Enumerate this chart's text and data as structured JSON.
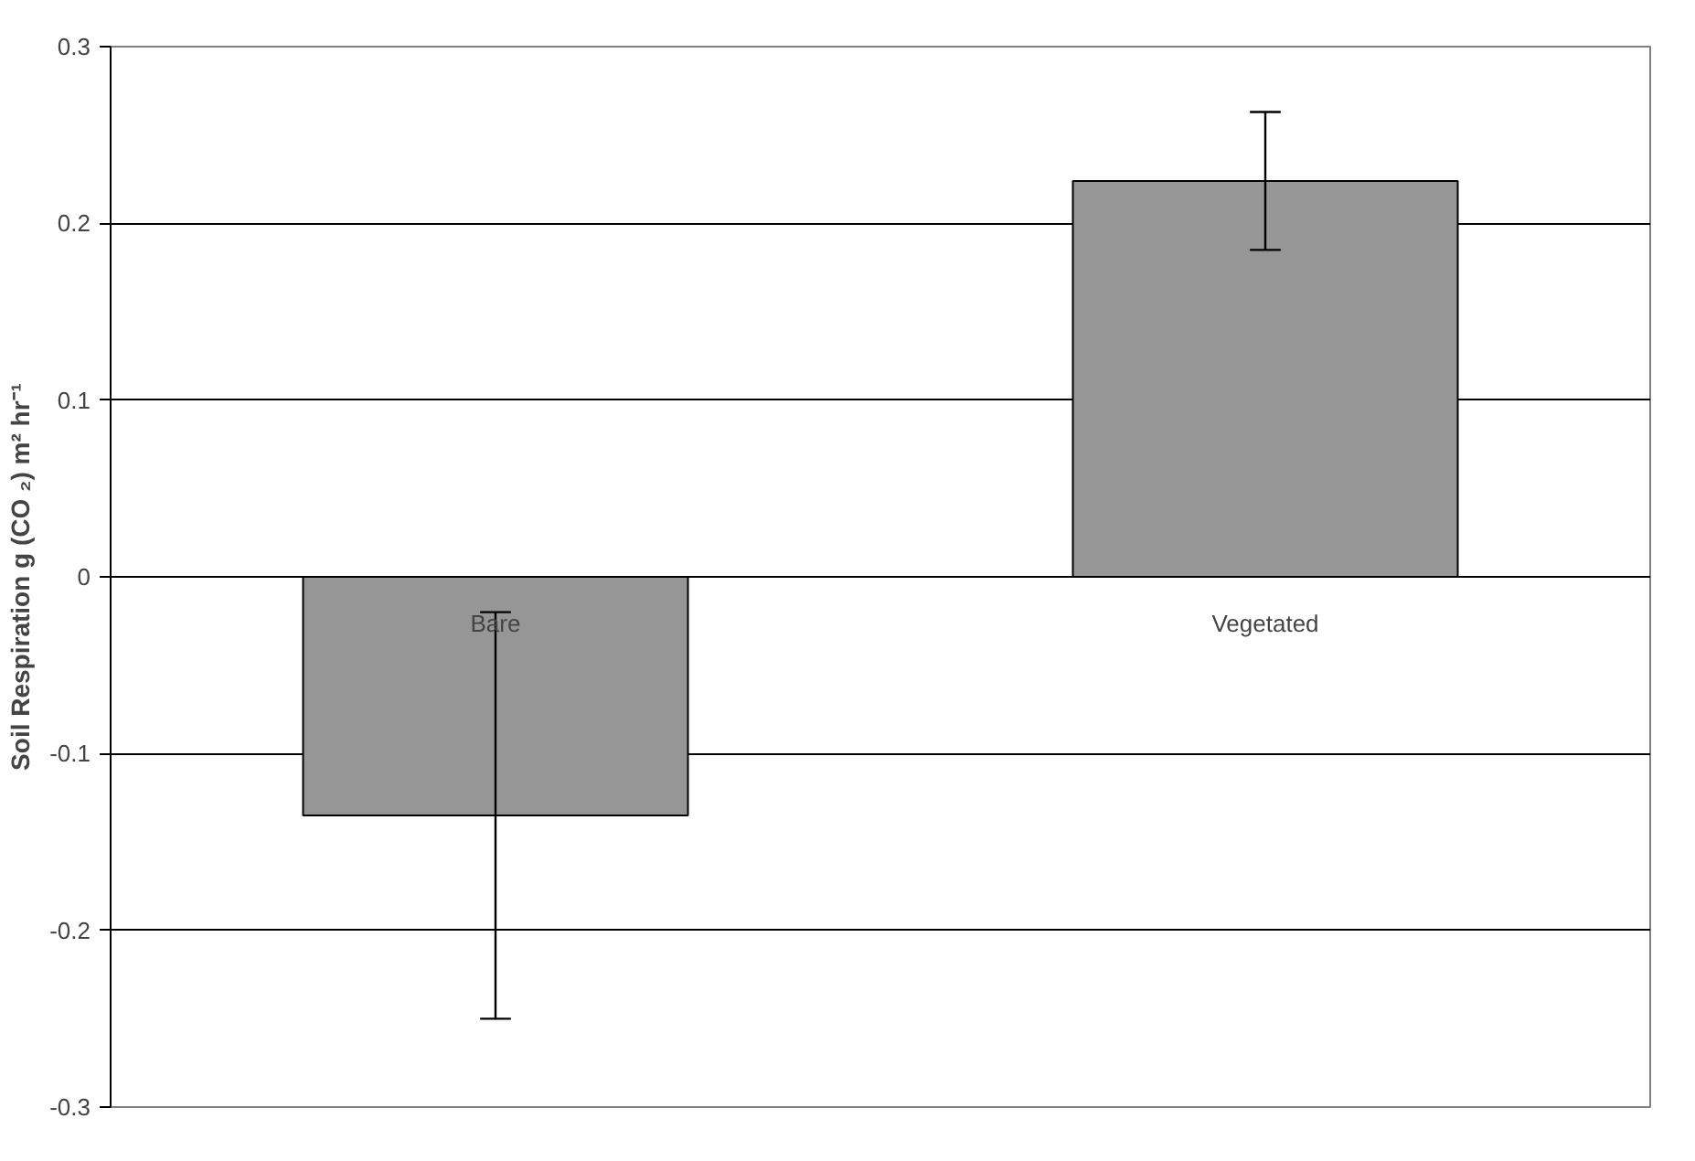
{
  "chart_data": {
    "type": "bar",
    "ylabel": "Soil Respiration g (CO ₂) m² hr⁻¹",
    "categories": [
      "Bare",
      "Vegetated"
    ],
    "values": [
      -0.135,
      0.224
    ],
    "errors": [
      [
        -0.25,
        -0.02
      ],
      [
        0.185,
        0.263
      ]
    ],
    "color": "#969696",
    "ylim": [
      -0.3,
      0.3
    ],
    "yticks": [
      -0.3,
      -0.2,
      -0.1,
      0,
      0.1,
      0.2,
      0.3
    ],
    "grid": "y"
  }
}
